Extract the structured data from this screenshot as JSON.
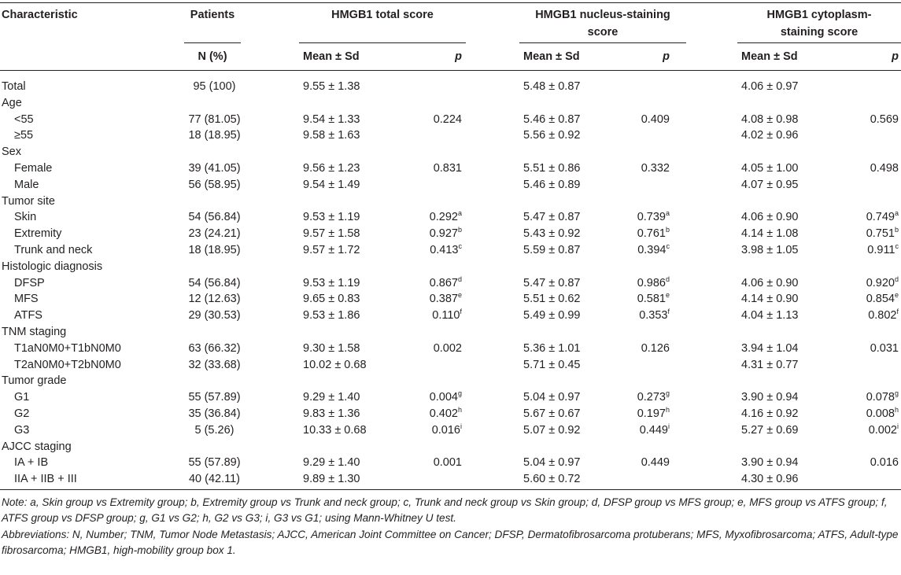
{
  "header": {
    "characteristic": "Characteristic",
    "patients": "Patients",
    "total_score": "HMGB1 total score",
    "nucleus_line1": "HMGB1 nucleus-staining",
    "nucleus_line2": "score",
    "cytoplasm_line1": "HMGB1 cytoplasm-",
    "cytoplasm_line2": "staining score",
    "n_pct": "N (%)",
    "mean_sd": "Mean ± Sd",
    "p": "p"
  },
  "rows": [
    {
      "label": "Total",
      "sub": false,
      "n": "95 (100)",
      "t_mean": "9.55 ± 1.38",
      "t_p": "",
      "t_sup": "",
      "n_mean": "5.48 ± 0.87",
      "n_p": "",
      "n_sup": "",
      "c_mean": "4.06 ± 0.97",
      "c_p": "",
      "c_sup": ""
    },
    {
      "label": "Age",
      "sub": false,
      "n": "",
      "t_mean": "",
      "t_p": "",
      "t_sup": "",
      "n_mean": "",
      "n_p": "",
      "n_sup": "",
      "c_mean": "",
      "c_p": "",
      "c_sup": ""
    },
    {
      "label": "<55",
      "sub": true,
      "n": "77 (81.05)",
      "t_mean": "9.54 ± 1.33",
      "t_p": "0.224",
      "t_sup": "",
      "n_mean": "5.46 ± 0.87",
      "n_p": "0.409",
      "n_sup": "",
      "c_mean": "4.08 ± 0.98",
      "c_p": "0.569",
      "c_sup": ""
    },
    {
      "label": "≥55",
      "sub": true,
      "n": "18 (18.95)",
      "t_mean": "9.58 ± 1.63",
      "t_p": "",
      "t_sup": "",
      "n_mean": "5.56 ± 0.92",
      "n_p": "",
      "n_sup": "",
      "c_mean": "4.02 ± 0.96",
      "c_p": "",
      "c_sup": ""
    },
    {
      "label": "Sex",
      "sub": false,
      "n": "",
      "t_mean": "",
      "t_p": "",
      "t_sup": "",
      "n_mean": "",
      "n_p": "",
      "n_sup": "",
      "c_mean": "",
      "c_p": "",
      "c_sup": ""
    },
    {
      "label": "Female",
      "sub": true,
      "n": "39 (41.05)",
      "t_mean": "9.56 ± 1.23",
      "t_p": "0.831",
      "t_sup": "",
      "n_mean": "5.51 ± 0.86",
      "n_p": "0.332",
      "n_sup": "",
      "c_mean": "4.05 ± 1.00",
      "c_p": "0.498",
      "c_sup": ""
    },
    {
      "label": "Male",
      "sub": true,
      "n": "56 (58.95)",
      "t_mean": "9.54 ± 1.49",
      "t_p": "",
      "t_sup": "",
      "n_mean": "5.46 ± 0.89",
      "n_p": "",
      "n_sup": "",
      "c_mean": "4.07 ± 0.95",
      "c_p": "",
      "c_sup": ""
    },
    {
      "label": "Tumor site",
      "sub": false,
      "n": "",
      "t_mean": "",
      "t_p": "",
      "t_sup": "",
      "n_mean": "",
      "n_p": "",
      "n_sup": "",
      "c_mean": "",
      "c_p": "",
      "c_sup": ""
    },
    {
      "label": "Skin",
      "sub": true,
      "n": "54 (56.84)",
      "t_mean": "9.53 ± 1.19",
      "t_p": "0.292",
      "t_sup": "a",
      "n_mean": "5.47 ± 0.87",
      "n_p": "0.739",
      "n_sup": "a",
      "c_mean": "4.06 ± 0.90",
      "c_p": "0.749",
      "c_sup": "a"
    },
    {
      "label": "Extremity",
      "sub": true,
      "n": "23 (24.21)",
      "t_mean": "9.57 ± 1.58",
      "t_p": "0.927",
      "t_sup": "b",
      "n_mean": "5.43 ± 0.92",
      "n_p": "0.761",
      "n_sup": "b",
      "c_mean": "4.14 ± 1.08",
      "c_p": "0.751",
      "c_sup": "b"
    },
    {
      "label": "Trunk and neck",
      "sub": true,
      "n": "18 (18.95)",
      "t_mean": "9.57 ± 1.72",
      "t_p": "0.413",
      "t_sup": "c",
      "n_mean": "5.59 ± 0.87",
      "n_p": "0.394",
      "n_sup": "c",
      "c_mean": "3.98 ± 1.05",
      "c_p": "0.911",
      "c_sup": "c"
    },
    {
      "label": "Histologic diagnosis",
      "sub": false,
      "n": "",
      "t_mean": "",
      "t_p": "",
      "t_sup": "",
      "n_mean": "",
      "n_p": "",
      "n_sup": "",
      "c_mean": "",
      "c_p": "",
      "c_sup": ""
    },
    {
      "label": "DFSP",
      "sub": true,
      "n": "54 (56.84)",
      "t_mean": "9.53 ± 1.19",
      "t_p": "0.867",
      "t_sup": "d",
      "n_mean": "5.47 ± 0.87",
      "n_p": "0.986",
      "n_sup": "d",
      "c_mean": "4.06 ± 0.90",
      "c_p": "0.920",
      "c_sup": "d"
    },
    {
      "label": "MFS",
      "sub": true,
      "n": "12 (12.63)",
      "t_mean": "9.65 ± 0.83",
      "t_p": "0.387",
      "t_sup": "e",
      "n_mean": "5.51 ± 0.62",
      "n_p": "0.581",
      "n_sup": "e",
      "c_mean": "4.14 ± 0.90",
      "c_p": "0.854",
      "c_sup": "e"
    },
    {
      "label": "ATFS",
      "sub": true,
      "n": "29 (30.53)",
      "t_mean": "9.53 ± 1.86",
      "t_p": "0.110",
      "t_sup": "f",
      "n_mean": "5.49 ± 0.99",
      "n_p": "0.353",
      "n_sup": "f",
      "c_mean": "4.04 ± 1.13",
      "c_p": "0.802",
      "c_sup": "f"
    },
    {
      "label": "TNM staging",
      "sub": false,
      "n": "",
      "t_mean": "",
      "t_p": "",
      "t_sup": "",
      "n_mean": "",
      "n_p": "",
      "n_sup": "",
      "c_mean": "",
      "c_p": "",
      "c_sup": ""
    },
    {
      "label": "T1aN0M0+T1bN0M0",
      "sub": true,
      "n": "63 (66.32)",
      "t_mean": "9.30 ± 1.58",
      "t_p": "0.002",
      "t_sup": "",
      "n_mean": "5.36 ± 1.01",
      "n_p": "0.126",
      "n_sup": "",
      "c_mean": "3.94 ± 1.04",
      "c_p": "0.031",
      "c_sup": ""
    },
    {
      "label": "T2aN0M0+T2bN0M0",
      "sub": true,
      "n": "32 (33.68)",
      "t_mean": "10.02 ± 0.68",
      "t_p": "",
      "t_sup": "",
      "n_mean": "5.71 ± 0.45",
      "n_p": "",
      "n_sup": "",
      "c_mean": "4.31 ± 0.77",
      "c_p": "",
      "c_sup": ""
    },
    {
      "label": "Tumor grade",
      "sub": false,
      "n": "",
      "t_mean": "",
      "t_p": "",
      "t_sup": "",
      "n_mean": "",
      "n_p": "",
      "n_sup": "",
      "c_mean": "",
      "c_p": "",
      "c_sup": ""
    },
    {
      "label": "G1",
      "sub": true,
      "n": "55 (57.89)",
      "t_mean": "9.29 ± 1.40",
      "t_p": "0.004",
      "t_sup": "g",
      "n_mean": "5.04 ± 0.97",
      "n_p": "0.273",
      "n_sup": "g",
      "c_mean": "3.90 ± 0.94",
      "c_p": "0.078",
      "c_sup": "g"
    },
    {
      "label": "G2",
      "sub": true,
      "n": "35 (36.84)",
      "t_mean": "9.83 ± 1.36",
      "t_p": "0.402",
      "t_sup": "h",
      "n_mean": "5.67 ± 0.67",
      "n_p": "0.197",
      "n_sup": "h",
      "c_mean": "4.16 ± 0.92",
      "c_p": "0.008",
      "c_sup": "h"
    },
    {
      "label": "G3",
      "sub": true,
      "n": "5 (5.26)",
      "t_mean": "10.33 ± 0.68",
      "t_p": "0.016",
      "t_sup": "i",
      "n_mean": "5.07 ± 0.92",
      "n_p": "0.449",
      "n_sup": "i",
      "c_mean": "5.27 ± 0.69",
      "c_p": "0.002",
      "c_sup": "i"
    },
    {
      "label": "AJCC staging",
      "sub": false,
      "n": "",
      "t_mean": "",
      "t_p": "",
      "t_sup": "",
      "n_mean": "",
      "n_p": "",
      "n_sup": "",
      "c_mean": "",
      "c_p": "",
      "c_sup": ""
    },
    {
      "label": "IA + IB",
      "sub": true,
      "n": "55 (57.89)",
      "t_mean": "9.29 ± 1.40",
      "t_p": "0.001",
      "t_sup": "",
      "n_mean": "5.04 ± 0.97",
      "n_p": "0.449",
      "n_sup": "",
      "c_mean": "3.90 ± 0.94",
      "c_p": "0.016",
      "c_sup": ""
    },
    {
      "label": "IIA + IIB + III",
      "sub": true,
      "n": "40 (42.11)",
      "t_mean": "9.89 ± 1.30",
      "t_p": "",
      "t_sup": "",
      "n_mean": "5.60 ± 0.72",
      "n_p": "",
      "n_sup": "",
      "c_mean": "4.30 ± 0.96",
      "c_p": "",
      "c_sup": ""
    }
  ],
  "notes": {
    "note": "Note: a, Skin group vs Extremity group; b, Extremity group vs Trunk and neck group; c, Trunk and neck group vs Skin group; d, DFSP group vs MFS group; e, MFS group vs ATFS group; f, ATFS group vs DFSP group; g, G1 vs G2; h, G2 vs G3; i, G3 vs G1; using Mann-Whitney U test.",
    "abbreviations": "Abbreviations: N, Number; TNM, Tumor Node Metastasis; AJCC, American Joint Committee on Cancer; DFSP, Dermatofibrosarcoma protuberans; MFS, Myxofibrosarcoma; ATFS, Adult-type fibrosarcoma; HMGB1, high-mobility group box 1."
  }
}
